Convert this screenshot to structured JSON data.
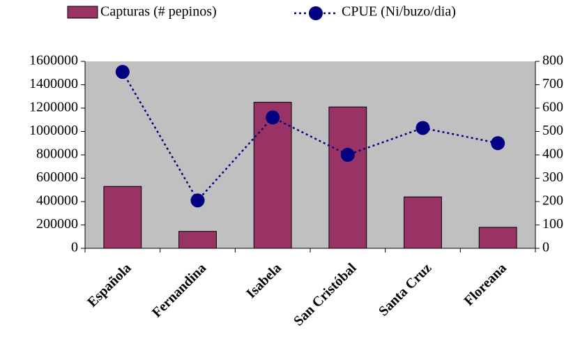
{
  "chart_data": {
    "type": "bar-line",
    "categories": [
      "Española",
      "Fernandina",
      "Isabela",
      "San Cristóbal",
      "Santa Cruz",
      "Floreana"
    ],
    "series": [
      {
        "name": "Capturas (# pepinos)",
        "color": "#993366",
        "type": "bar",
        "values": [
          530000,
          145000,
          1250000,
          1210000,
          440000,
          180000
        ]
      },
      {
        "name": "CPUE (Ni/buzo/dia)",
        "color": "#000080",
        "type": "line",
        "axis": "y2",
        "values": [
          755,
          205,
          560,
          400,
          515,
          450
        ]
      }
    ],
    "ylim": [
      0,
      1600000
    ],
    "yticks": [
      0,
      200000,
      400000,
      600000,
      800000,
      1000000,
      1200000,
      1400000,
      1600000
    ],
    "y2lim": [
      0,
      800
    ],
    "y2ticks": [
      0,
      100,
      200,
      300,
      400,
      500,
      600,
      700,
      800
    ],
    "plot_background": "#c0c0c0",
    "legend": "top"
  }
}
